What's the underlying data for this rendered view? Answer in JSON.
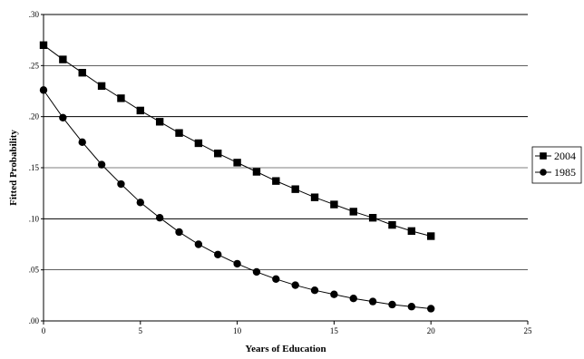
{
  "chart_data": {
    "type": "line",
    "title": "",
    "xlabel": "Years of Education",
    "ylabel": "Fitted Probability",
    "xlim": [
      0,
      25
    ],
    "ylim": [
      0,
      0.3
    ],
    "x_ticks": [
      0,
      5,
      10,
      15,
      20,
      25
    ],
    "x_tick_labels": [
      "0",
      "5",
      "10",
      "15",
      "20",
      "25"
    ],
    "y_ticks": [
      0,
      0.05,
      0.1,
      0.15,
      0.2,
      0.25,
      0.3
    ],
    "y_tick_labels": [
      ".00",
      ".05",
      ".10",
      ".15",
      ".20",
      ".25",
      ".30"
    ],
    "grid": "horizontal",
    "legend_position": "right",
    "x": [
      0,
      1,
      2,
      3,
      4,
      5,
      6,
      7,
      8,
      9,
      10,
      11,
      12,
      13,
      14,
      15,
      16,
      17,
      18,
      19,
      20
    ],
    "series": [
      {
        "name": "2004",
        "marker": "square",
        "values": [
          0.27,
          0.256,
          0.243,
          0.23,
          0.218,
          0.206,
          0.195,
          0.184,
          0.174,
          0.164,
          0.155,
          0.146,
          0.137,
          0.129,
          0.121,
          0.114,
          0.107,
          0.101,
          0.094,
          0.088,
          0.083
        ]
      },
      {
        "name": "1985",
        "marker": "circle",
        "values": [
          0.226,
          0.199,
          0.175,
          0.153,
          0.134,
          0.116,
          0.101,
          0.087,
          0.075,
          0.065,
          0.056,
          0.048,
          0.041,
          0.035,
          0.03,
          0.026,
          0.022,
          0.019,
          0.016,
          0.014,
          0.012
        ]
      }
    ]
  }
}
